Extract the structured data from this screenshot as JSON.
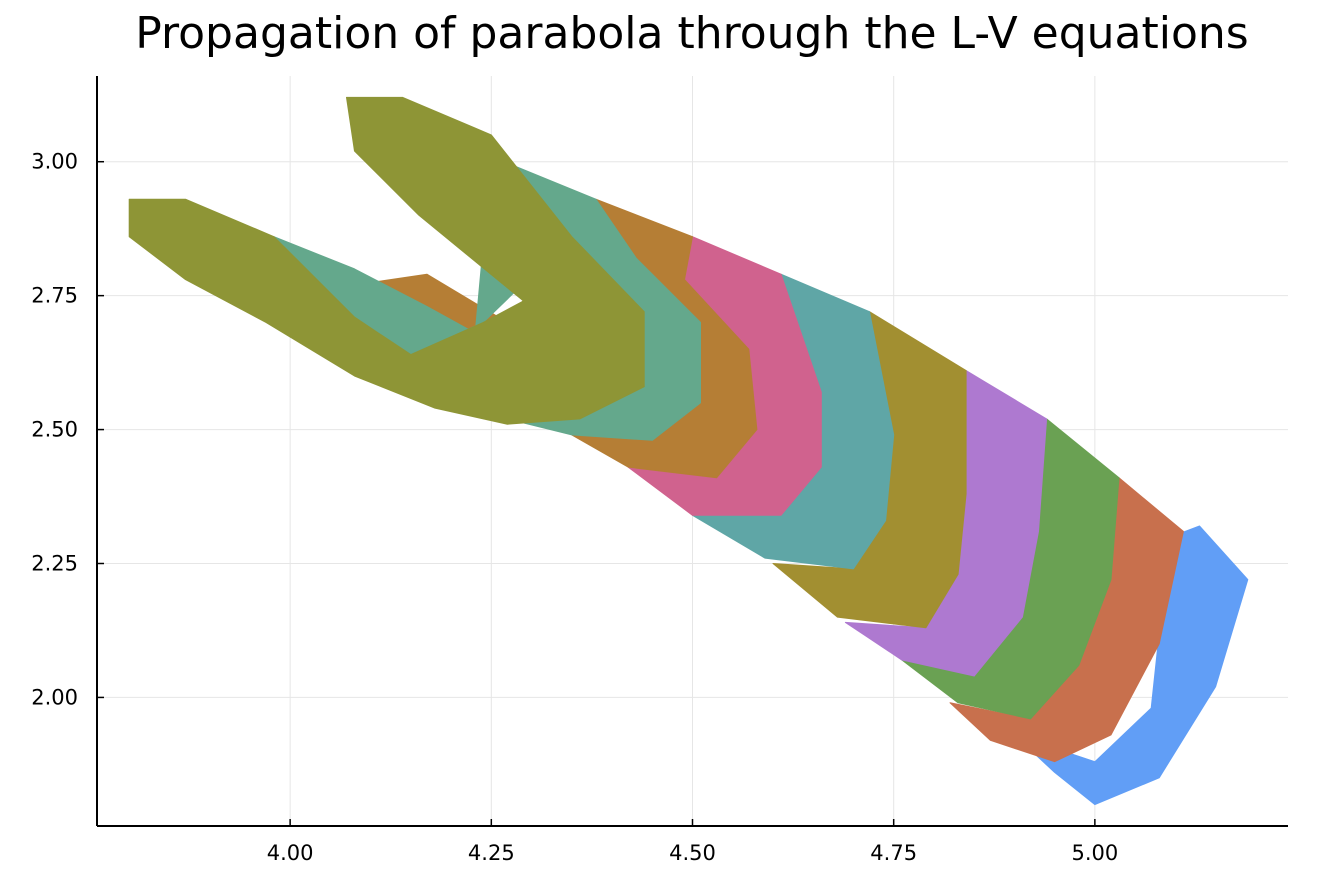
{
  "chart_data": {
    "type": "area",
    "title": "Propagation of parabola through the L-V equations",
    "xlabel": "",
    "ylabel": "",
    "xlim": [
      3.76,
      5.24
    ],
    "ylim": [
      1.76,
      3.16
    ],
    "x_ticks": [
      "4.00",
      "4.25",
      "4.50",
      "4.75",
      "5.00"
    ],
    "y_ticks": [
      "2.00",
      "2.25",
      "2.50",
      "2.75",
      "3.00"
    ],
    "x_tick_values": [
      4.0,
      4.25,
      4.5,
      4.75,
      5.0
    ],
    "y_tick_values": [
      2.0,
      2.25,
      2.5,
      2.75,
      3.0
    ],
    "grid": true,
    "legend": "none",
    "series": [
      {
        "color": "#619ef6",
        "points": [
          [
            5.13,
            2.32
          ],
          [
            5.19,
            2.22
          ],
          [
            5.15,
            2.02
          ],
          [
            5.08,
            1.85
          ],
          [
            5.0,
            1.8
          ],
          [
            4.95,
            1.86
          ],
          [
            4.9,
            1.93
          ],
          [
            5.0,
            1.88
          ],
          [
            5.07,
            1.98
          ],
          [
            5.08,
            2.12
          ],
          [
            5.06,
            2.28
          ]
        ]
      },
      {
        "color": "#c8704d",
        "points": [
          [
            5.03,
            2.41
          ],
          [
            5.11,
            2.31
          ],
          [
            5.08,
            2.1
          ],
          [
            5.02,
            1.93
          ],
          [
            4.95,
            1.88
          ],
          [
            4.87,
            1.92
          ],
          [
            4.82,
            1.99
          ],
          [
            4.92,
            1.96
          ],
          [
            4.98,
            2.06
          ],
          [
            4.99,
            2.22
          ],
          [
            4.97,
            2.37
          ]
        ]
      },
      {
        "color": "#6aa153",
        "points": [
          [
            4.94,
            2.52
          ],
          [
            5.03,
            2.41
          ],
          [
            5.02,
            2.22
          ],
          [
            4.98,
            2.06
          ],
          [
            4.92,
            1.96
          ],
          [
            4.83,
            1.99
          ],
          [
            4.76,
            2.07
          ],
          [
            4.85,
            2.04
          ],
          [
            4.91,
            2.15
          ],
          [
            4.93,
            2.31
          ],
          [
            4.89,
            2.46
          ]
        ]
      },
      {
        "color": "#ae79d0",
        "points": [
          [
            4.84,
            2.61
          ],
          [
            4.94,
            2.52
          ],
          [
            4.93,
            2.31
          ],
          [
            4.91,
            2.15
          ],
          [
            4.85,
            2.04
          ],
          [
            4.76,
            2.07
          ],
          [
            4.69,
            2.14
          ],
          [
            4.79,
            2.13
          ],
          [
            4.83,
            2.23
          ],
          [
            4.84,
            2.38
          ],
          [
            4.8,
            2.55
          ]
        ]
      },
      {
        "color": "#a28f31",
        "points": [
          [
            4.72,
            2.72
          ],
          [
            4.84,
            2.61
          ],
          [
            4.84,
            2.38
          ],
          [
            4.83,
            2.23
          ],
          [
            4.79,
            2.13
          ],
          [
            4.68,
            2.15
          ],
          [
            4.6,
            2.25
          ],
          [
            4.7,
            2.24
          ],
          [
            4.74,
            2.33
          ],
          [
            4.75,
            2.49
          ],
          [
            4.71,
            2.63
          ]
        ]
      },
      {
        "color": "#5fa6a6",
        "points": [
          [
            4.61,
            2.79
          ],
          [
            4.72,
            2.72
          ],
          [
            4.75,
            2.49
          ],
          [
            4.74,
            2.33
          ],
          [
            4.7,
            2.24
          ],
          [
            4.59,
            2.26
          ],
          [
            4.5,
            2.34
          ],
          [
            4.61,
            2.34
          ],
          [
            4.66,
            2.43
          ],
          [
            4.66,
            2.57
          ],
          [
            4.61,
            2.71
          ]
        ]
      },
      {
        "color": "#d0628e",
        "points": [
          [
            4.5,
            2.86
          ],
          [
            4.61,
            2.79
          ],
          [
            4.66,
            2.57
          ],
          [
            4.66,
            2.43
          ],
          [
            4.61,
            2.34
          ],
          [
            4.5,
            2.34
          ],
          [
            4.42,
            2.43
          ],
          [
            4.53,
            2.41
          ],
          [
            4.58,
            2.5
          ],
          [
            4.57,
            2.65
          ],
          [
            4.49,
            2.78
          ],
          [
            4.27,
            2.7
          ],
          [
            4.19,
            2.74
          ],
          [
            4.23,
            2.68
          ],
          [
            4.3,
            2.62
          ],
          [
            4.33,
            2.57
          ],
          [
            4.24,
            2.58
          ],
          [
            4.14,
            2.62
          ],
          [
            4.33,
            2.61
          ]
        ]
      },
      {
        "color": "#b57e35",
        "points": [
          [
            4.38,
            2.93
          ],
          [
            4.5,
            2.86
          ],
          [
            4.49,
            2.78
          ],
          [
            4.57,
            2.65
          ],
          [
            4.58,
            2.5
          ],
          [
            4.53,
            2.41
          ],
          [
            4.42,
            2.43
          ],
          [
            4.35,
            2.49
          ],
          [
            4.45,
            2.48
          ],
          [
            4.51,
            2.55
          ],
          [
            4.51,
            2.7
          ],
          [
            4.43,
            2.82
          ],
          [
            4.36,
            2.75
          ],
          [
            4.29,
            2.7
          ],
          [
            4.25,
            2.65
          ],
          [
            4.3,
            2.62
          ],
          [
            4.23,
            2.68
          ],
          [
            4.17,
            2.73
          ],
          [
            4.08,
            2.77
          ],
          [
            4.17,
            2.79
          ],
          [
            4.27,
            2.7
          ]
        ]
      },
      {
        "color": "#64a88c",
        "points": [
          [
            4.25,
            3.01
          ],
          [
            4.38,
            2.93
          ],
          [
            4.43,
            2.82
          ],
          [
            4.51,
            2.7
          ],
          [
            4.51,
            2.55
          ],
          [
            4.45,
            2.48
          ],
          [
            4.35,
            2.49
          ],
          [
            4.27,
            2.52
          ],
          [
            4.36,
            2.52
          ],
          [
            4.44,
            2.58
          ],
          [
            4.44,
            2.72
          ],
          [
            4.35,
            2.86
          ],
          [
            4.24,
            2.7
          ],
          [
            4.15,
            2.64
          ],
          [
            4.08,
            2.71
          ],
          [
            3.98,
            2.86
          ],
          [
            4.08,
            2.8
          ],
          [
            4.17,
            2.73
          ],
          [
            4.23,
            2.68
          ]
        ]
      },
      {
        "color": "#8e9536",
        "points": [
          [
            4.07,
            3.12
          ],
          [
            4.14,
            3.12
          ],
          [
            4.25,
            3.05
          ],
          [
            4.35,
            2.86
          ],
          [
            4.44,
            2.72
          ],
          [
            4.44,
            2.58
          ],
          [
            4.36,
            2.52
          ],
          [
            4.27,
            2.51
          ],
          [
            4.18,
            2.54
          ],
          [
            4.08,
            2.6
          ],
          [
            3.97,
            2.7
          ],
          [
            3.87,
            2.78
          ],
          [
            3.8,
            2.86
          ],
          [
            3.8,
            2.93
          ],
          [
            3.87,
            2.93
          ],
          [
            3.98,
            2.86
          ],
          [
            4.08,
            2.71
          ],
          [
            4.15,
            2.64
          ],
          [
            4.24,
            2.7
          ],
          [
            4.29,
            2.74
          ],
          [
            4.16,
            2.9
          ],
          [
            4.08,
            3.02
          ]
        ]
      }
    ]
  }
}
